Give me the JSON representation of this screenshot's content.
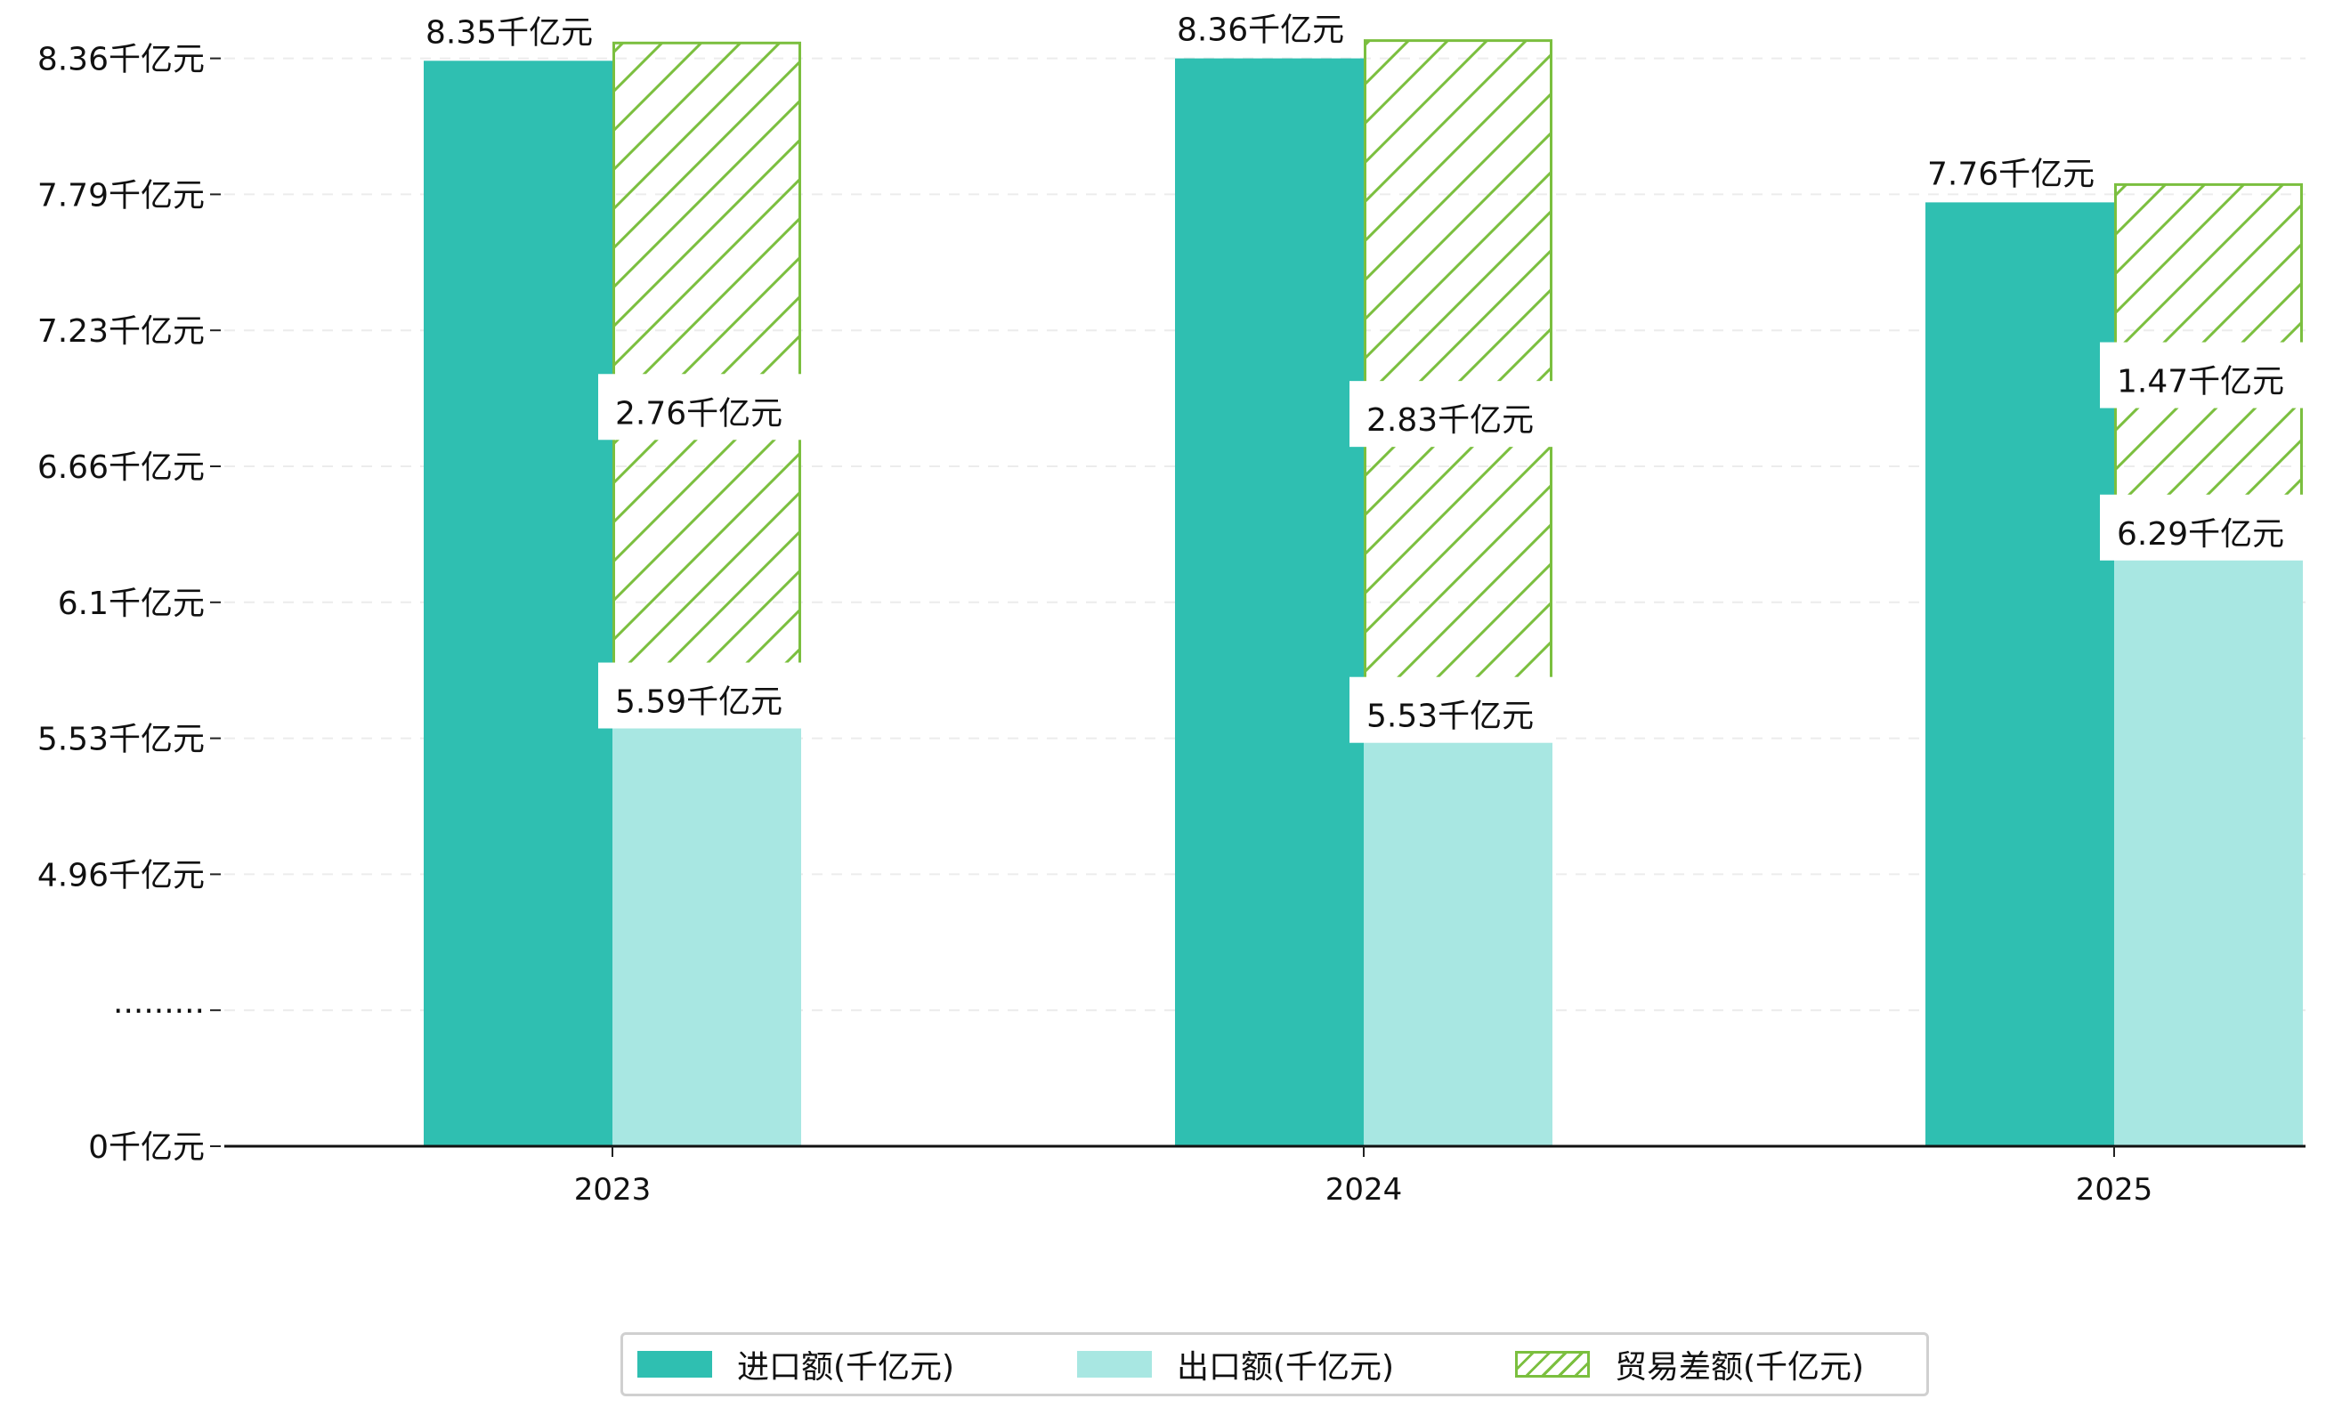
{
  "chart_data": {
    "type": "bar",
    "categories": [
      "2023",
      "2024",
      "2025"
    ],
    "series": [
      {
        "name": "进口额(千亿元)",
        "values": [
          8.35,
          8.36,
          7.76
        ],
        "color": "#2fbfb1",
        "style": "solid"
      },
      {
        "name": "出口额(千亿元)",
        "values": [
          5.59,
          5.53,
          6.29
        ],
        "color": "#a8e7e2",
        "style": "solid"
      },
      {
        "name": "贸易差额(千亿元)",
        "values": [
          2.76,
          2.83,
          1.47
        ],
        "color": "#7bbf3f",
        "style": "hatched",
        "stacked_on": "出口额(千亿元)"
      }
    ],
    "data_labels": {
      "import": [
        "8.35千亿元",
        "8.36千亿元",
        "7.76千亿元"
      ],
      "export": [
        "5.59千亿元",
        "5.53千亿元",
        "6.29千亿元"
      ],
      "balance": [
        "2.76千亿元",
        "2.83千亿元",
        "1.47千亿元"
      ]
    },
    "y_ticks": [
      "0千亿元",
      "·········",
      "4.96千亿元",
      "5.53千亿元",
      "6.1千亿元",
      "6.66千亿元",
      "7.23千亿元",
      "7.79千亿元",
      "8.36千亿元"
    ],
    "y_axis_note": "broken axis: gap between 0 and 4.96",
    "ylim": [
      0,
      8.36
    ],
    "grid": "horizontal dashed",
    "legend_position": "bottom-center",
    "title": "",
    "xlabel": "",
    "ylabel": ""
  },
  "legend": {
    "items": [
      {
        "label": "进口额(千亿元)",
        "swatch": "solid-teal"
      },
      {
        "label": "出口额(千亿元)",
        "swatch": "solid-light-teal"
      },
      {
        "label": "贸易差额(千亿元)",
        "swatch": "hatched-green"
      }
    ]
  }
}
